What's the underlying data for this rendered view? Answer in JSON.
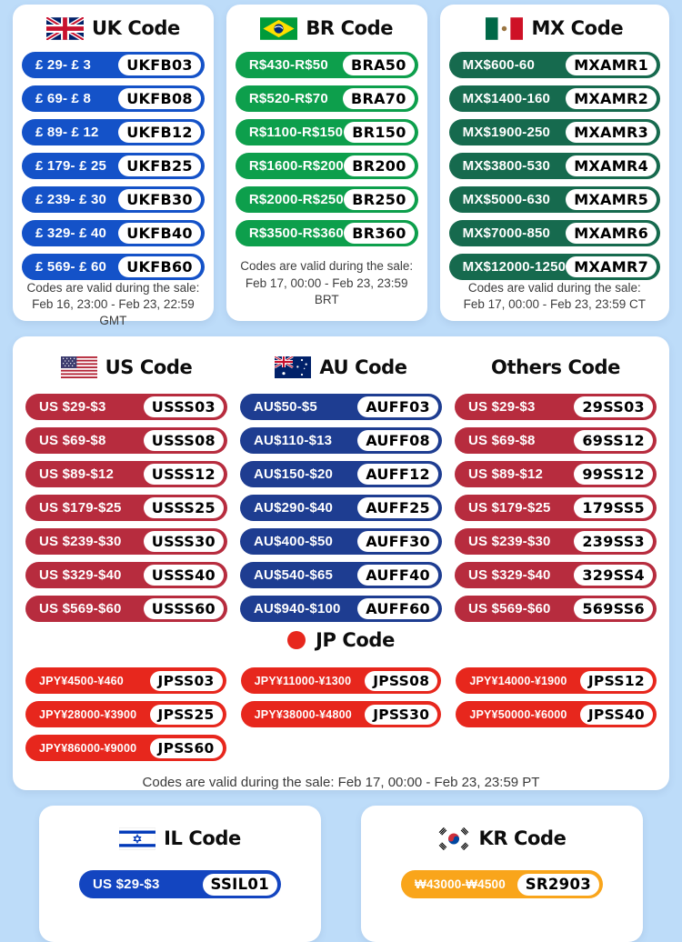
{
  "page": {
    "background": "#bddcf9",
    "card_background": "#ffffff"
  },
  "cards": {
    "uk": {
      "title": "UK Code",
      "color": "#1452c8",
      "pills": [
        {
          "label": "£ 29- £ 3",
          "code": "UKFB03"
        },
        {
          "label": "£ 69- £ 8",
          "code": "UKFB08"
        },
        {
          "label": "£ 89- £ 12",
          "code": "UKFB12"
        },
        {
          "label": "£ 179- £ 25",
          "code": "UKFB25"
        },
        {
          "label": "£ 239- £ 30",
          "code": "UKFB30"
        },
        {
          "label": "£ 329- £ 40",
          "code": "UKFB40"
        },
        {
          "label": "£ 569- £ 60",
          "code": "UKFB60"
        }
      ],
      "footer": [
        "Codes are valid during the sale:",
        "Feb 16, 23:00 - Feb 23, 22:59 GMT"
      ]
    },
    "br": {
      "title": "BR Code",
      "color": "#0d9f4c",
      "pills": [
        {
          "label": "R$430-R$50",
          "code": "BRA50"
        },
        {
          "label": "R$520-R$70",
          "code": "BRA70"
        },
        {
          "label": "R$1100-R$150",
          "code": "BR150"
        },
        {
          "label": "R$1600-R$200",
          "code": "BR200"
        },
        {
          "label": "R$2000-R$250",
          "code": "BR250"
        },
        {
          "label": "R$3500-R$360",
          "code": "BR360"
        }
      ],
      "footer": [
        "Codes are valid during the sale:",
        "Feb 17, 00:00 - Feb 23, 23:59 BRT"
      ]
    },
    "mx": {
      "title": "MX Code",
      "color": "#166a4e",
      "pills": [
        {
          "label": "MX$600-60",
          "code": "MXAMR1"
        },
        {
          "label": "MX$1400-160",
          "code": "MXAMR2"
        },
        {
          "label": "MX$1900-250",
          "code": "MXAMR3"
        },
        {
          "label": "MX$3800-530",
          "code": "MXAMR4"
        },
        {
          "label": "MX$5000-630",
          "code": "MXAMR5"
        },
        {
          "label": "MX$7000-850",
          "code": "MXAMR6"
        },
        {
          "label": "MX$12000-1250",
          "code": "MXAMR7"
        }
      ],
      "footer": [
        "Codes are valid during the sale:",
        "Feb 17, 00:00 - Feb 23, 23:59 CT"
      ]
    },
    "us": {
      "title": "US Code",
      "color": "#b72c3e",
      "pills": [
        {
          "label": "US $29-$3",
          "code": "USSS03"
        },
        {
          "label": "US $69-$8",
          "code": "USSS08"
        },
        {
          "label": "US $89-$12",
          "code": "USSS12"
        },
        {
          "label": "US $179-$25",
          "code": "USSS25"
        },
        {
          "label": "US $239-$30",
          "code": "USSS30"
        },
        {
          "label": "US $329-$40",
          "code": "USSS40"
        },
        {
          "label": "US $569-$60",
          "code": "USSS60"
        }
      ]
    },
    "au": {
      "title": "AU Code",
      "color": "#1e3d91",
      "pills": [
        {
          "label": "AU$50-$5",
          "code": "AUFF03"
        },
        {
          "label": "AU$110-$13",
          "code": "AUFF08"
        },
        {
          "label": "AU$150-$20",
          "code": "AUFF12"
        },
        {
          "label": "AU$290-$40",
          "code": "AUFF25"
        },
        {
          "label": "AU$400-$50",
          "code": "AUFF30"
        },
        {
          "label": "AU$540-$65",
          "code": "AUFF40"
        },
        {
          "label": "AU$940-$100",
          "code": "AUFF60"
        }
      ]
    },
    "others": {
      "title": "Others Code",
      "color": "#b72c3e",
      "pills": [
        {
          "label": "US $29-$3",
          "code": "29SS03"
        },
        {
          "label": "US $69-$8",
          "code": "69SS12"
        },
        {
          "label": "US $89-$12",
          "code": "99SS12"
        },
        {
          "label": "US $179-$25",
          "code": "179SS5"
        },
        {
          "label": "US $239-$30",
          "code": "239SS3"
        },
        {
          "label": "US $329-$40",
          "code": "329SS4"
        },
        {
          "label": "US $569-$60",
          "code": "569SS6"
        }
      ]
    },
    "jp": {
      "title": "JP Code",
      "color": "#e7271d",
      "pills": [
        {
          "label": "JPY¥4500-¥460",
          "code": "JPSS03"
        },
        {
          "label": "JPY¥11000-¥1300",
          "code": "JPSS08"
        },
        {
          "label": "JPY¥14000-¥1900",
          "code": "JPSS12"
        },
        {
          "label": "JPY¥28000-¥3900",
          "code": "JPSS25"
        },
        {
          "label": "JPY¥38000-¥4800",
          "code": "JPSS30"
        },
        {
          "label": "JPY¥50000-¥6000",
          "code": "JPSS40"
        },
        {
          "label": "JPY¥86000-¥9000",
          "code": "JPSS60"
        }
      ],
      "footer": "Codes are valid during the sale: Feb 17, 00:00 - Feb 23, 23:59 PT"
    },
    "il": {
      "title": "IL Code",
      "color": "#1345c0",
      "pills": [
        {
          "label": "US $29-$3",
          "code": "SSIL01"
        }
      ]
    },
    "kr": {
      "title": "KR Code",
      "color": "#f9a51b",
      "pills": [
        {
          "label": "₩43000-₩4500",
          "code": "SR2903"
        }
      ]
    }
  }
}
